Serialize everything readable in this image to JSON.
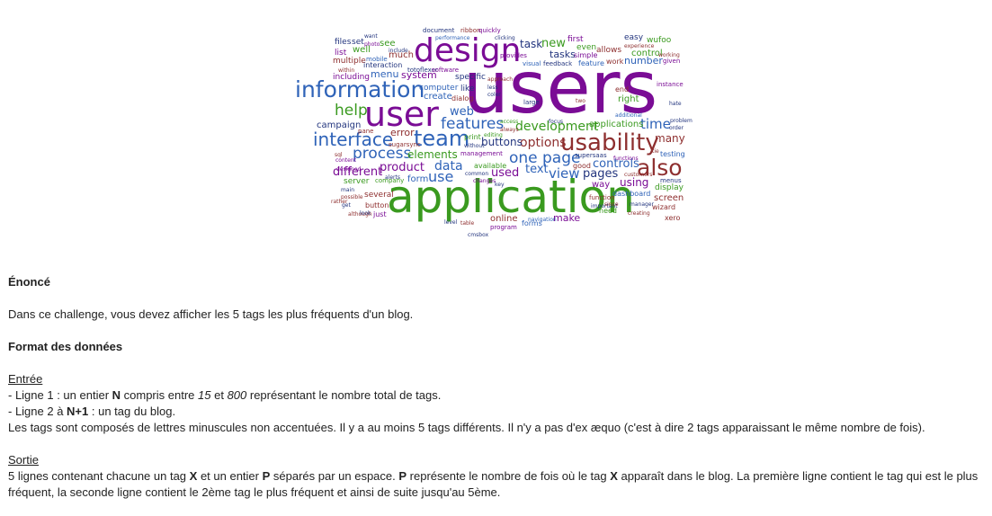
{
  "word_cloud": {
    "colors": {
      "purple": "#7a0c95",
      "blue": "#2f63b8",
      "green": "#3a9a1f",
      "maroon": "#8e2f2f",
      "navy": "#23357e"
    },
    "words": [
      {
        "text": "users",
        "color": "purple"
      },
      {
        "text": "application",
        "color": "green"
      },
      {
        "text": "design",
        "color": "purple"
      },
      {
        "text": "user",
        "color": "purple"
      },
      {
        "text": "usability",
        "color": "maroon"
      },
      {
        "text": "information",
        "color": "blue"
      },
      {
        "text": "team",
        "color": "blue"
      },
      {
        "text": "interface",
        "color": "blue"
      },
      {
        "text": "also",
        "color": "maroon"
      },
      {
        "text": "features",
        "color": "blue"
      },
      {
        "text": "process",
        "color": "blue"
      },
      {
        "text": "help",
        "color": "green"
      },
      {
        "text": "page",
        "color": "blue"
      },
      {
        "text": "one",
        "color": "blue"
      },
      {
        "text": "development",
        "color": "green"
      },
      {
        "text": "time",
        "color": "blue"
      },
      {
        "text": "options",
        "color": "maroon"
      },
      {
        "text": "view",
        "color": "blue"
      },
      {
        "text": "pages",
        "color": "navy"
      },
      {
        "text": "product",
        "color": "purple"
      },
      {
        "text": "different",
        "color": "purple"
      },
      {
        "text": "elements",
        "color": "green"
      },
      {
        "text": "data",
        "color": "blue"
      },
      {
        "text": "use",
        "color": "blue"
      },
      {
        "text": "controls",
        "color": "blue"
      },
      {
        "text": "text",
        "color": "blue"
      },
      {
        "text": "used",
        "color": "purple"
      },
      {
        "text": "many",
        "color": "maroon"
      },
      {
        "text": "web",
        "color": "blue"
      },
      {
        "text": "task",
        "color": "navy"
      },
      {
        "text": "new",
        "color": "green"
      },
      {
        "text": "tasks",
        "color": "navy"
      },
      {
        "text": "menu",
        "color": "blue"
      },
      {
        "text": "system",
        "color": "purple"
      },
      {
        "text": "buttons",
        "color": "navy"
      },
      {
        "text": "applications",
        "color": "green"
      },
      {
        "text": "right",
        "color": "green"
      },
      {
        "text": "number",
        "color": "blue"
      },
      {
        "text": "control",
        "color": "green"
      },
      {
        "text": "using",
        "color": "purple"
      },
      {
        "text": "screen",
        "color": "maroon"
      },
      {
        "text": "display",
        "color": "green"
      },
      {
        "text": "form",
        "color": "blue"
      },
      {
        "text": "make",
        "color": "purple"
      },
      {
        "text": "online",
        "color": "maroon"
      },
      {
        "text": "error",
        "color": "maroon"
      },
      {
        "text": "campaign",
        "color": "navy"
      },
      {
        "text": "including",
        "color": "purple"
      },
      {
        "text": "server",
        "color": "green"
      },
      {
        "text": "much",
        "color": "maroon"
      },
      {
        "text": "see",
        "color": "green"
      },
      {
        "text": "list",
        "color": "purple"
      },
      {
        "text": "well",
        "color": "green"
      },
      {
        "text": "multiple",
        "color": "maroon"
      },
      {
        "text": "set",
        "color": "navy"
      },
      {
        "text": "files",
        "color": "navy"
      },
      {
        "text": "computer",
        "color": "blue"
      },
      {
        "text": "create",
        "color": "blue"
      },
      {
        "text": "like",
        "color": "navy"
      },
      {
        "text": "specific",
        "color": "navy"
      },
      {
        "text": "dialog",
        "color": "maroon"
      },
      {
        "text": "first",
        "color": "purple"
      },
      {
        "text": "even",
        "color": "green"
      },
      {
        "text": "easy",
        "color": "navy"
      },
      {
        "text": "wufoo",
        "color": "green"
      },
      {
        "text": "allows",
        "color": "maroon"
      },
      {
        "text": "simple",
        "color": "purple"
      },
      {
        "text": "work",
        "color": "maroon"
      },
      {
        "text": "given",
        "color": "purple"
      },
      {
        "text": "feature",
        "color": "blue"
      },
      {
        "text": "feedback",
        "color": "navy"
      },
      {
        "text": "visual",
        "color": "blue"
      },
      {
        "text": "provides",
        "color": "purple"
      },
      {
        "text": "end",
        "color": "maroon"
      },
      {
        "text": "way",
        "color": "purple"
      },
      {
        "text": "good",
        "color": "maroon"
      },
      {
        "text": "need",
        "color": "green"
      },
      {
        "text": "xero",
        "color": "maroon"
      },
      {
        "text": "wizard",
        "color": "maroon"
      },
      {
        "text": "function",
        "color": "maroon"
      },
      {
        "text": "dashboard",
        "color": "blue"
      },
      {
        "text": "supersaas",
        "color": "navy"
      },
      {
        "text": "several",
        "color": "maroon"
      },
      {
        "text": "button",
        "color": "maroon"
      },
      {
        "text": "just",
        "color": "purple"
      },
      {
        "text": "interaction",
        "color": "navy"
      },
      {
        "text": "mobile",
        "color": "blue"
      },
      {
        "text": "management",
        "color": "purple"
      },
      {
        "text": "available",
        "color": "green"
      },
      {
        "text": "company",
        "color": "green"
      },
      {
        "text": "program",
        "color": "purple"
      },
      {
        "text": "forms",
        "color": "blue"
      },
      {
        "text": "document",
        "color": "navy"
      },
      {
        "text": "ribbon",
        "color": "maroon"
      },
      {
        "text": "quickly",
        "color": "purple"
      },
      {
        "text": "print",
        "color": "green"
      },
      {
        "text": "testing",
        "color": "blue"
      },
      {
        "text": "menus",
        "color": "navy"
      },
      {
        "text": "instance",
        "color": "purple"
      },
      {
        "text": "performance",
        "color": "blue"
      },
      {
        "text": "clicking",
        "color": "navy"
      },
      {
        "text": "want",
        "color": "navy"
      },
      {
        "text": "photo",
        "color": "purple"
      },
      {
        "text": "include",
        "color": "navy"
      },
      {
        "text": "within",
        "color": "maroon"
      },
      {
        "text": "totoflexer",
        "color": "navy"
      },
      {
        "text": "software",
        "color": "purple"
      },
      {
        "text": "experience",
        "color": "maroon"
      },
      {
        "text": "working",
        "color": "maroon"
      },
      {
        "text": "approach",
        "color": "maroon"
      },
      {
        "text": "less",
        "color": "navy"
      },
      {
        "text": "color",
        "color": "navy"
      },
      {
        "text": "large",
        "color": "navy"
      },
      {
        "text": "two",
        "color": "maroon"
      },
      {
        "text": "additional",
        "color": "blue"
      },
      {
        "text": "hate",
        "color": "navy"
      },
      {
        "text": "pane",
        "color": "maroon"
      },
      {
        "text": "sugarsync",
        "color": "maroon"
      },
      {
        "text": "without",
        "color": "navy"
      },
      {
        "text": "editing",
        "color": "green"
      },
      {
        "text": "access",
        "color": "green"
      },
      {
        "text": "always",
        "color": "maroon"
      },
      {
        "text": "focus",
        "color": "navy"
      },
      {
        "text": "problem",
        "color": "navy"
      },
      {
        "text": "order",
        "color": "navy"
      },
      {
        "text": "tie",
        "color": "maroon"
      },
      {
        "text": "sql",
        "color": "maroon"
      },
      {
        "text": "content",
        "color": "purple"
      },
      {
        "text": "designed",
        "color": "purple"
      },
      {
        "text": "alerts",
        "color": "navy"
      },
      {
        "text": "common",
        "color": "navy"
      },
      {
        "text": "changes",
        "color": "purple"
      },
      {
        "text": "key",
        "color": "navy"
      },
      {
        "text": "functions",
        "color": "purple"
      },
      {
        "text": "customers",
        "color": "maroon"
      },
      {
        "text": "main",
        "color": "navy"
      },
      {
        "text": "possible",
        "color": "maroon"
      },
      {
        "text": "rather",
        "color": "maroon"
      },
      {
        "text": "get",
        "color": "navy"
      },
      {
        "text": "although",
        "color": "maroon"
      },
      {
        "text": "look",
        "color": "navy"
      },
      {
        "text": "level",
        "color": "navy"
      },
      {
        "text": "table",
        "color": "maroon"
      },
      {
        "text": "navigation",
        "color": "blue"
      },
      {
        "text": "important",
        "color": "navy"
      },
      {
        "text": "since",
        "color": "maroon"
      },
      {
        "text": "manager",
        "color": "navy"
      },
      {
        "text": "creating",
        "color": "maroon"
      },
      {
        "text": "cmsbox",
        "color": "navy"
      },
      {
        "text": "familiar",
        "color": "blue"
      }
    ]
  },
  "statement": {
    "heading": "Énoncé",
    "text": "Dans ce challenge, vous devez afficher les 5 tags les plus fréquents d'un blog."
  },
  "format": {
    "heading": "Format des données",
    "input": {
      "title": "Entrée",
      "line1": {
        "p1": "- Ligne 1 : un entier ",
        "b1": "N",
        "p2": " compris entre ",
        "i1": "15",
        "p3": " et ",
        "i2": "800",
        "p4": " représentant le nombre total de tags."
      },
      "line2": {
        "p1": "- Ligne 2 à ",
        "b1": "N+1",
        "p2": " : un tag du blog."
      },
      "line3": "Les tags sont composés de lettres minuscules non accentuées. Il y a au moins 5 tags différents. Il n'y a pas d'ex æquo (c'est à dire 2 tags apparaissant le même nombre de fois)."
    },
    "output": {
      "title": "Sortie",
      "line": {
        "p1": "5 lignes contenant chacune un tag ",
        "b1": "X",
        "p2": " et un entier ",
        "b2": "P",
        "p3": " séparés par un espace. ",
        "b3": "P",
        "p4": " représente le nombre de fois où le tag ",
        "b4": "X",
        "p5": " apparaît dans le blog. La première ligne contient le tag qui est le plus fréquent, la seconde ligne contient le 2ème tag le plus fréquent et ainsi de suite jusqu'au 5ème."
      }
    }
  }
}
